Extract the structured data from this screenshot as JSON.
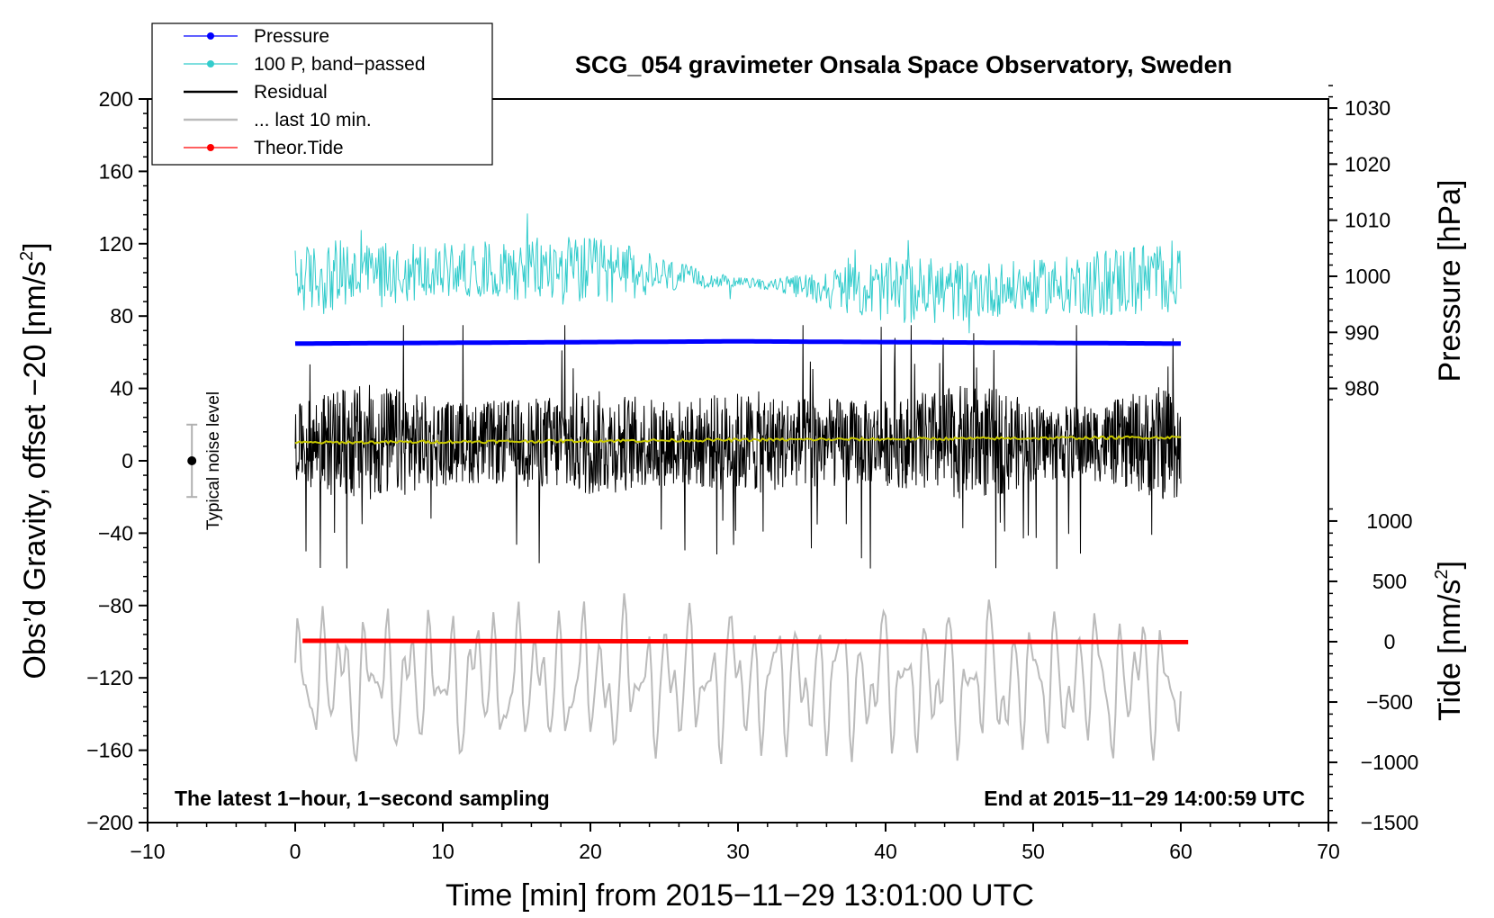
{
  "chart_data": {
    "type": "line",
    "title": "SCG_054 gravimeter Onsala Space Observatory, Sweden",
    "xlabel": "Time [min] from 2015−11−29 13:01:00 UTC",
    "ylabel_left": "Obs’d Gravity, offset −20 [nm/s",
    "ylabel_left_sup": "2",
    "ylabel_left_end": "]",
    "ylabel_right_pressure": "Pressure [hPa]",
    "ylabel_right_tide": "Tide [nm/s",
    "ylabel_right_tide_sup": "2",
    "ylabel_right_tide_end": "]",
    "xlim": [
      -10,
      70
    ],
    "ylim_left": [
      -200,
      200
    ],
    "x_ticks": [
      -10,
      0,
      10,
      20,
      30,
      40,
      50,
      60,
      70
    ],
    "x_tick_labels": [
      "−10",
      "0",
      "10",
      "20",
      "30",
      "40",
      "50",
      "60",
      "70"
    ],
    "y_ticks_left": [
      -200,
      -160,
      -120,
      -80,
      -40,
      0,
      40,
      80,
      120,
      160,
      200
    ],
    "y_tick_labels_left": [
      "−200",
      "−160",
      "−120",
      "−80",
      "−40",
      "0",
      "40",
      "80",
      "120",
      "160",
      "200"
    ],
    "pressure_axis": {
      "ticks": [
        980,
        990,
        1000,
        1010,
        1020,
        1030
      ],
      "labels": [
        "980",
        "990",
        "1000",
        "1010",
        "1020",
        "1030"
      ],
      "at_left_value_980": 40,
      "left_units_per_hpa": 3.1
    },
    "tide_axis": {
      "ticks": [
        -1500,
        -1000,
        -500,
        0,
        500,
        1000
      ],
      "labels": [
        "−1500",
        "−1000",
        "−500",
        "0",
        "500",
        "1000"
      ],
      "at_left_value_0": -100,
      "left_units_per_nms2": 0.0667
    },
    "series": [
      {
        "name": "Pressure",
        "color": "#0000ff",
        "style": "line+dot",
        "x_range": [
          0,
          60
        ],
        "value_hpa_start": 988.0,
        "value_hpa_mid": 988.4,
        "value_hpa_end": 988.0,
        "left_equiv": 55
      },
      {
        "name": "100 P, band−passed",
        "color": "#33cccc",
        "style": "noisy-line",
        "x_range": [
          0,
          60
        ],
        "center_left": 100,
        "amplitude_left": 25,
        "peak_left": 148
      },
      {
        "name": "Residual",
        "color": "#000000",
        "style": "noisy-line",
        "x_range": [
          0,
          60
        ],
        "center_left": 10,
        "amplitude_left": 45,
        "min_left": -67,
        "max_left": 75
      },
      {
        "name": "... last 10 min.",
        "color": "#bbbbbb",
        "style": "line",
        "x_range": [
          0,
          60
        ],
        "center_left": -122,
        "amplitude_left": 45,
        "min_left": -175,
        "max_left": -62
      },
      {
        "name": "Theor.Tide",
        "color": "#ff0000",
        "style": "line+dot",
        "x_range": [
          0.5,
          60.5
        ],
        "left_start": -99.5,
        "left_end": -100.2
      },
      {
        "name": "Smoothed residual",
        "color": "#c8c800",
        "style": "line",
        "x_range": [
          0,
          60
        ],
        "left_start": 10,
        "left_end": 13,
        "legend": false
      }
    ],
    "noise_bar": {
      "label": "Typical noise level",
      "x": -7,
      "center": 0,
      "low": -20,
      "high": 20
    },
    "annotations": {
      "bottom_left": "The latest 1−hour, 1−second sampling",
      "bottom_right": "End at 2015−11−29 14:00:59 UTC"
    },
    "legend_position": "top-left"
  }
}
